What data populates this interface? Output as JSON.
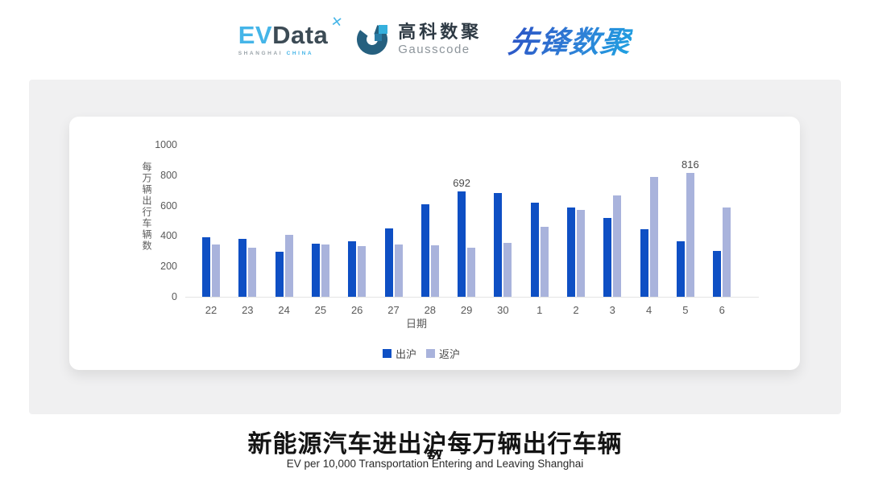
{
  "header": {
    "evdata": {
      "ev": "EV",
      "data": "Data",
      "star": "✕",
      "shanghai": "SHANGHAI",
      "china": "CHINA"
    },
    "gausscode": {
      "cn": "高科数聚",
      "en": "Gausscode"
    },
    "pioneer": {
      "text": "先锋数聚"
    }
  },
  "colors": {
    "bar_primary": "#0e4fc4",
    "bar_secondary": "#a9b3dc",
    "logo_lightblue": "#45b5e8",
    "logo_dark": "#3c4b55",
    "gauss_icon_dark": "#26607f",
    "gauss_icon_light": "#35b0dd"
  },
  "chart_data": {
    "type": "bar",
    "categories": [
      "22",
      "23",
      "24",
      "25",
      "26",
      "27",
      "28",
      "29",
      "30",
      "1",
      "2",
      "3",
      "4",
      "5",
      "6"
    ],
    "series": [
      {
        "name": "出沪",
        "color": "#0e4fc4",
        "values": [
          390,
          380,
          297,
          350,
          366,
          451,
          611,
          692,
          683,
          617,
          590,
          521,
          444,
          365,
          300
        ],
        "labeled_categories": [
          "29"
        ]
      },
      {
        "name": "返沪",
        "color": "#a9b3dc",
        "values": [
          345,
          322,
          405,
          342,
          331,
          345,
          337,
          321,
          356,
          458,
          572,
          669,
          787,
          816,
          585
        ],
        "labeled_categories": [
          "5"
        ]
      }
    ],
    "xlabel": "日期",
    "ylabel": "每万辆出行车辆数",
    "ylim": [
      0,
      1000
    ],
    "yticks": [
      0,
      200,
      400,
      600,
      800,
      1000
    ],
    "grid": false,
    "legend_position": "bottom",
    "annotated_values": {
      "692": "692",
      "816": "816"
    }
  },
  "footer": {
    "title_line1": "新能源汽车进出沪每万辆出行车辆",
    "title_wrap": "数",
    "subtitle": "EV per 10,000 Transportation Entering and Leaving Shanghai"
  }
}
